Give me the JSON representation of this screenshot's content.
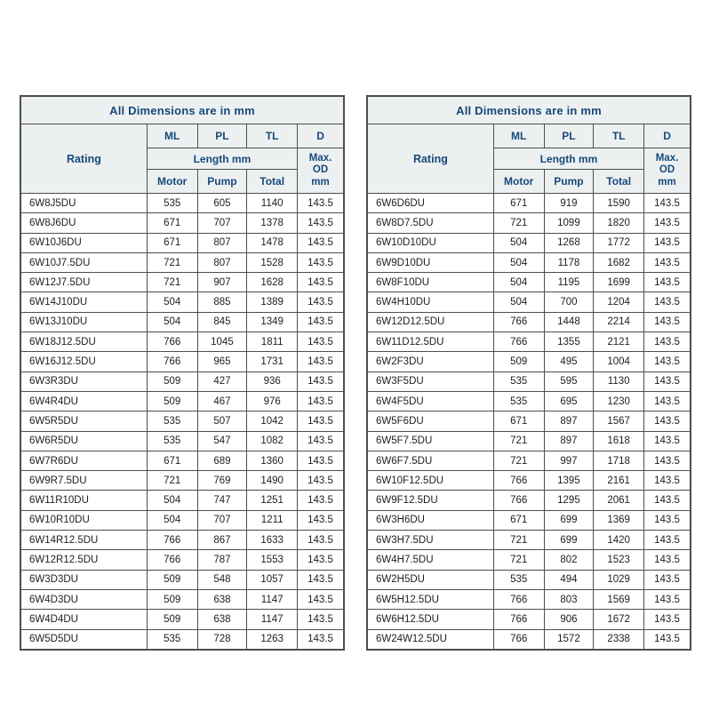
{
  "page": {
    "background": "#ffffff"
  },
  "colors": {
    "header_bg": "#edf0f0",
    "header_text": "#17497b",
    "border": "#4e4e4e",
    "data_text": "#1e1e1e",
    "row_bg": "#ffffff"
  },
  "tables": [
    {
      "title": "All Dimensions are in mm",
      "columns": {
        "rating": "Rating",
        "ml": "ML",
        "pl": "PL",
        "tl": "TL",
        "d": "D",
        "length_group": "Length mm",
        "max_od": [
          "Max.",
          "OD",
          "mm"
        ],
        "motor": "Motor",
        "pump": "Pump",
        "total": "Total"
      },
      "rows": [
        [
          "6W8J5DU",
          "535",
          "605",
          "1140",
          "143.5"
        ],
        [
          "6W8J6DU",
          "671",
          "707",
          "1378",
          "143.5"
        ],
        [
          "6W10J6DU",
          "671",
          "807",
          "1478",
          "143.5"
        ],
        [
          "6W10J7.5DU",
          "721",
          "807",
          "1528",
          "143.5"
        ],
        [
          "6W12J7.5DU",
          "721",
          "907",
          "1628",
          "143.5"
        ],
        [
          "6W14J10DU",
          "504",
          "885",
          "1389",
          "143.5"
        ],
        [
          "6W13J10DU",
          "504",
          "845",
          "1349",
          "143.5"
        ],
        [
          "6W18J12.5DU",
          "766",
          "1045",
          "1811",
          "143.5"
        ],
        [
          "6W16J12.5DU",
          "766",
          "965",
          "1731",
          "143.5"
        ],
        [
          "6W3R3DU",
          "509",
          "427",
          "936",
          "143.5"
        ],
        [
          "6W4R4DU",
          "509",
          "467",
          "976",
          "143.5"
        ],
        [
          "6W5R5DU",
          "535",
          "507",
          "1042",
          "143.5"
        ],
        [
          "6W6R5DU",
          "535",
          "547",
          "1082",
          "143.5"
        ],
        [
          "6W7R6DU",
          "671",
          "689",
          "1360",
          "143.5"
        ],
        [
          "6W9R7.5DU",
          "721",
          "769",
          "1490",
          "143.5"
        ],
        [
          "6W11R10DU",
          "504",
          "747",
          "1251",
          "143.5"
        ],
        [
          "6W10R10DU",
          "504",
          "707",
          "1211",
          "143.5"
        ],
        [
          "6W14R12.5DU",
          "766",
          "867",
          "1633",
          "143.5"
        ],
        [
          "6W12R12.5DU",
          "766",
          "787",
          "1553",
          "143.5"
        ],
        [
          "6W3D3DU",
          "509",
          "548",
          "1057",
          "143.5"
        ],
        [
          "6W4D3DU",
          "509",
          "638",
          "1147",
          "143.5"
        ],
        [
          "6W4D4DU",
          "509",
          "638",
          "1147",
          "143.5"
        ],
        [
          "6W5D5DU",
          "535",
          "728",
          "1263",
          "143.5"
        ]
      ]
    },
    {
      "title": "All Dimensions are in mm",
      "columns": {
        "rating": "Rating",
        "ml": "ML",
        "pl": "PL",
        "tl": "TL",
        "d": "D",
        "length_group": "Length mm",
        "max_od": [
          "Max.",
          "OD",
          "mm"
        ],
        "motor": "Motor",
        "pump": "Pump",
        "total": "Total"
      },
      "rows": [
        [
          "6W6D6DU",
          "671",
          "919",
          "1590",
          "143.5"
        ],
        [
          "6W8D7.5DU",
          "721",
          "1099",
          "1820",
          "143.5"
        ],
        [
          "6W10D10DU",
          "504",
          "1268",
          "1772",
          "143.5"
        ],
        [
          "6W9D10DU",
          "504",
          "1178",
          "1682",
          "143.5"
        ],
        [
          "6W8F10DU",
          "504",
          "1195",
          "1699",
          "143.5"
        ],
        [
          "6W4H10DU",
          "504",
          "700",
          "1204",
          "143.5"
        ],
        [
          "6W12D12.5DU",
          "766",
          "1448",
          "2214",
          "143.5"
        ],
        [
          "6W11D12.5DU",
          "766",
          "1355",
          "2121",
          "143.5"
        ],
        [
          "6W2F3DU",
          "509",
          "495",
          "1004",
          "143.5"
        ],
        [
          "6W3F5DU",
          "535",
          "595",
          "1130",
          "143.5"
        ],
        [
          "6W4F5DU",
          "535",
          "695",
          "1230",
          "143.5"
        ],
        [
          "6W5F6DU",
          "671",
          "897",
          "1567",
          "143.5"
        ],
        [
          "6W5F7.5DU",
          "721",
          "897",
          "1618",
          "143.5"
        ],
        [
          "6W6F7.5DU",
          "721",
          "997",
          "1718",
          "143.5"
        ],
        [
          "6W10F12.5DU",
          "766",
          "1395",
          "2161",
          "143.5"
        ],
        [
          "6W9F12.5DU",
          "766",
          "1295",
          "2061",
          "143.5"
        ],
        [
          "6W3H6DU",
          "671",
          "699",
          "1369",
          "143.5"
        ],
        [
          "6W3H7.5DU",
          "721",
          "699",
          "1420",
          "143.5"
        ],
        [
          "6W4H7.5DU",
          "721",
          "802",
          "1523",
          "143.5"
        ],
        [
          "6W2H5DU",
          "535",
          "494",
          "1029",
          "143.5"
        ],
        [
          "6W5H12.5DU",
          "766",
          "803",
          "1569",
          "143.5"
        ],
        [
          "6W6H12.5DU",
          "766",
          "906",
          "1672",
          "143.5"
        ],
        [
          "6W24W12.5DU",
          "766",
          "1572",
          "2338",
          "143.5"
        ]
      ]
    }
  ]
}
